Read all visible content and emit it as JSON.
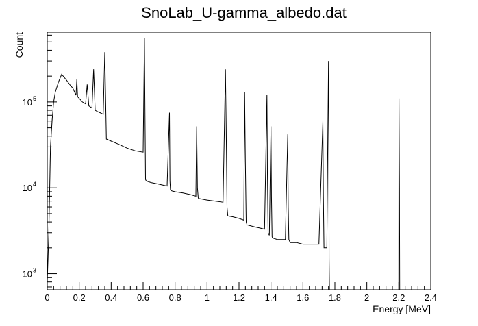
{
  "chart_data": {
    "type": "line",
    "title": "SnoLab_U-gamma_albedo.dat",
    "xlabel": "Energy [MeV]",
    "ylabel": "Count",
    "xlim": [
      0,
      2.4
    ],
    "ylim": [
      650,
      650000
    ],
    "y_scale": "log",
    "grid": false,
    "line_color": "#000000",
    "x_ticks": [
      0,
      0.2,
      0.4,
      0.6,
      0.8,
      1,
      1.2,
      1.4,
      1.6,
      1.8,
      2,
      2.2,
      2.4
    ],
    "x_tick_labels": [
      "0",
      "0.2",
      "0.4",
      "0.6",
      "0.8",
      "1",
      "1.2",
      "1.4",
      "1.6",
      "1.8",
      "2",
      "2.2",
      "2.4"
    ],
    "y_ticks": [
      1000,
      10000,
      100000
    ],
    "y_tick_labels": [
      {
        "base": "10",
        "exp": "3"
      },
      {
        "base": "10",
        "exp": "4"
      },
      {
        "base": "10",
        "exp": "5"
      }
    ],
    "series": [
      {
        "x": [
          0,
          0.01,
          0.02,
          0.03,
          0.04,
          0.05,
          0.07,
          0.09,
          0.1,
          0.12,
          0.14,
          0.16,
          0.18,
          0.185,
          0.19,
          0.2,
          0.22,
          0.24,
          0.25,
          0.26,
          0.28,
          0.29,
          0.3,
          0.31,
          0.33,
          0.35,
          0.36,
          0.37,
          0.4,
          0.45,
          0.5,
          0.55,
          0.6,
          0.608,
          0.61,
          0.615,
          0.62,
          0.65,
          0.7,
          0.75,
          0.765,
          0.768,
          0.771,
          0.78,
          0.8,
          0.85,
          0.9,
          0.93,
          0.935,
          0.94,
          0.945,
          0.95,
          1.0,
          1.05,
          1.1,
          1.115,
          1.12,
          1.125,
          1.13,
          1.16,
          1.2,
          1.23,
          1.235,
          1.24,
          1.245,
          1.25,
          1.3,
          1.33,
          1.36,
          1.375,
          1.378,
          1.382,
          1.39,
          1.4,
          1.403,
          1.407,
          1.41,
          1.44,
          1.49,
          1.505,
          1.508,
          1.512,
          1.52,
          1.56,
          1.6,
          1.65,
          1.7,
          1.725,
          1.728,
          1.732,
          1.74,
          1.75,
          1.76,
          1.762,
          1.764,
          1.766,
          1.768,
          1.77,
          1.78,
          1.8,
          2.0,
          2.2,
          2.201,
          2.204,
          2.206,
          2.21,
          2.4
        ],
        "y": [
          800,
          3000,
          30000,
          60000,
          100000,
          130000,
          170000,
          210000,
          200000,
          180000,
          160000,
          145000,
          120000,
          185000,
          115000,
          110000,
          100000,
          95000,
          160000,
          90000,
          85000,
          240000,
          80000,
          78000,
          75000,
          72000,
          380000,
          37000,
          35000,
          32000,
          29000,
          27000,
          26000,
          560000,
          200000,
          12500,
          12000,
          11500,
          11000,
          10500,
          75000,
          12000,
          9500,
          9200,
          9000,
          8700,
          8300,
          8000,
          52000,
          10000,
          7600,
          7500,
          7200,
          7000,
          6800,
          240000,
          50000,
          6000,
          4700,
          4600,
          4400,
          4200,
          130000,
          20000,
          4000,
          3700,
          3500,
          3400,
          3300,
          120000,
          15000,
          3000,
          2800,
          52000,
          8000,
          2700,
          2600,
          2500,
          2500,
          42000,
          6000,
          2500,
          2300,
          2300,
          2200,
          2200,
          2200,
          60000,
          8000,
          2000,
          2000,
          2000,
          300000,
          100000,
          1500,
          600,
          600,
          600,
          600,
          600,
          600,
          600,
          110000,
          10000,
          600,
          600,
          600
        ]
      }
    ]
  }
}
